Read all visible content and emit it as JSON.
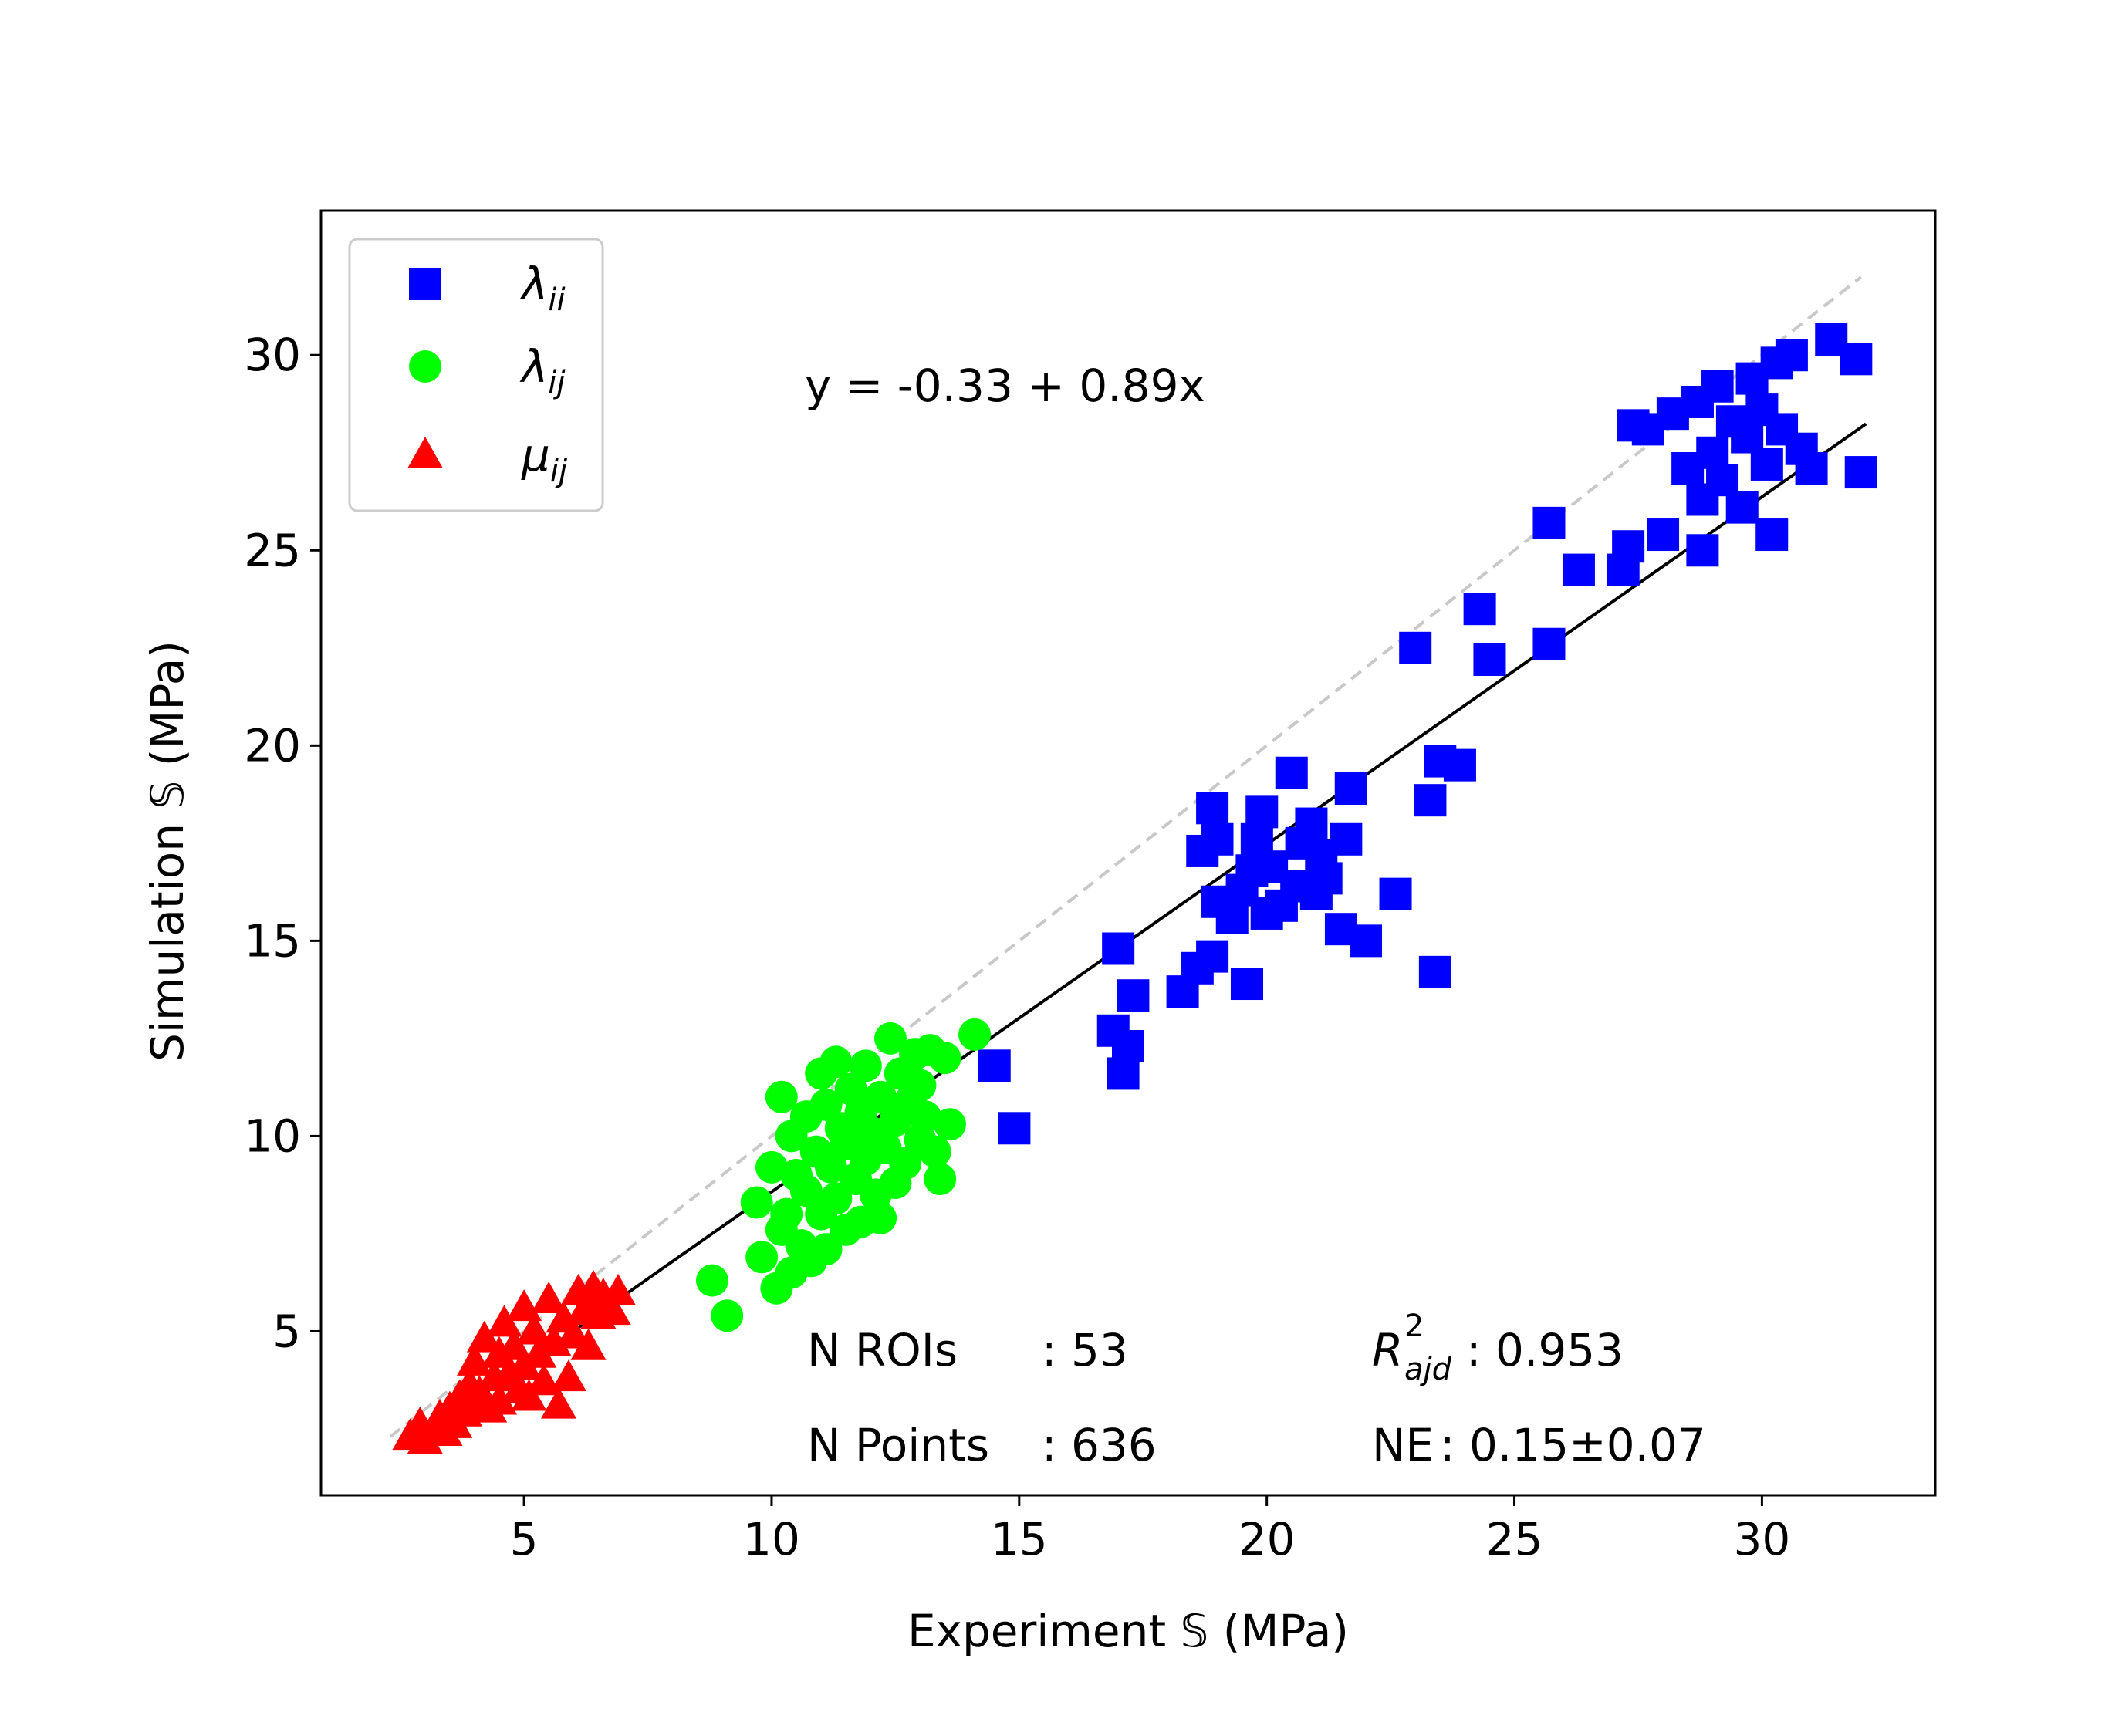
{
  "chart_data": {
    "type": "scatter",
    "xlabel": "Experiment 𝕊 (MPa)",
    "ylabel": "Simulation 𝕊 (MPa)",
    "xlim": [
      0.9,
      33.5
    ],
    "ylim": [
      0.8,
      33.7
    ],
    "xticks": [
      5,
      10,
      15,
      20,
      25,
      30
    ],
    "yticks": [
      5,
      10,
      15,
      20,
      25,
      30
    ],
    "tick_labels": {
      "x": [
        "5",
        "10",
        "15",
        "20",
        "25",
        "30"
      ],
      "y": [
        "5",
        "10",
        "15",
        "20",
        "25",
        "30"
      ]
    },
    "grid": false,
    "legend_placement": "top-left",
    "legend": [
      {
        "series": "lambda_ii",
        "sym": "λ",
        "sub": "ii"
      },
      {
        "series": "lambda_ij",
        "sym": "λ",
        "sub": "ij"
      },
      {
        "series": "mu_ij",
        "sym": "μ",
        "sub": "ij"
      }
    ],
    "equation": "y = -0.33 + 0.89x",
    "fit_line": {
      "intercept": -0.33,
      "slope": 0.89,
      "x_range": [
        2.8,
        32.1
      ],
      "color": "#000000"
    },
    "identity_line": {
      "x_range": [
        2.3,
        32.0
      ],
      "color": "#c8c8c8",
      "style": "dashed"
    },
    "annotations": {
      "n_rois_label": "N ROIs",
      "n_rois_value": ": 53",
      "n_points_label": "N Points",
      "n_points_value": ": 636",
      "r2_symbol": "R",
      "r2_sub": "ajd",
      "r2_sup": "2",
      "r2_value": ": 0.953",
      "ne_label": "NE",
      "ne_value": ": 0.15±0.07"
    },
    "series": [
      {
        "key": "lambda_ii",
        "marker": "square",
        "color": "#0000ff",
        "points": [
          [
            14.5,
            11.8
          ],
          [
            14.9,
            10.2
          ],
          [
            16.9,
            12.7
          ],
          [
            17.0,
            14.8
          ],
          [
            17.1,
            11.6
          ],
          [
            17.2,
            12.3
          ],
          [
            17.3,
            13.6
          ],
          [
            18.3,
            13.7
          ],
          [
            18.6,
            14.3
          ],
          [
            18.7,
            17.3
          ],
          [
            18.9,
            14.6
          ],
          [
            18.9,
            18.4
          ],
          [
            19.0,
            17.6
          ],
          [
            19.0,
            16.0
          ],
          [
            19.3,
            15.6
          ],
          [
            19.5,
            16.3
          ],
          [
            19.6,
            13.9
          ],
          [
            19.7,
            16.8
          ],
          [
            19.8,
            17.6
          ],
          [
            19.9,
            18.3
          ],
          [
            20.0,
            15.7
          ],
          [
            20.1,
            16.9
          ],
          [
            20.3,
            15.9
          ],
          [
            20.5,
            19.3
          ],
          [
            20.6,
            16.4
          ],
          [
            20.7,
            17.5
          ],
          [
            20.9,
            18.0
          ],
          [
            21.0,
            16.2
          ],
          [
            21.1,
            17.2
          ],
          [
            21.2,
            16.6
          ],
          [
            21.5,
            15.3
          ],
          [
            21.6,
            17.6
          ],
          [
            21.7,
            18.9
          ],
          [
            22.0,
            15.0
          ],
          [
            22.6,
            16.2
          ],
          [
            23.0,
            22.5
          ],
          [
            23.3,
            18.6
          ],
          [
            23.4,
            14.2
          ],
          [
            23.5,
            19.6
          ],
          [
            23.9,
            19.5
          ],
          [
            24.3,
            23.5
          ],
          [
            24.5,
            22.2
          ],
          [
            25.7,
            25.7
          ],
          [
            25.7,
            22.6
          ],
          [
            26.3,
            24.5
          ],
          [
            27.2,
            24.5
          ],
          [
            27.3,
            25.1
          ],
          [
            27.4,
            28.2
          ],
          [
            27.7,
            28.1
          ],
          [
            28.0,
            25.4
          ],
          [
            28.2,
            28.5
          ],
          [
            28.5,
            27.1
          ],
          [
            28.7,
            28.8
          ],
          [
            28.8,
            26.3
          ],
          [
            28.8,
            25.0
          ],
          [
            29.0,
            27.5
          ],
          [
            29.1,
            29.2
          ],
          [
            29.2,
            26.8
          ],
          [
            29.4,
            28.3
          ],
          [
            29.6,
            26.1
          ],
          [
            29.7,
            27.9
          ],
          [
            29.8,
            29.4
          ],
          [
            30.0,
            28.6
          ],
          [
            30.1,
            27.2
          ],
          [
            30.2,
            25.4
          ],
          [
            30.3,
            29.8
          ],
          [
            30.4,
            28.1
          ],
          [
            30.6,
            30.0
          ],
          [
            30.8,
            27.6
          ],
          [
            31.0,
            27.1
          ],
          [
            31.4,
            30.4
          ],
          [
            31.9,
            29.9
          ],
          [
            32.0,
            27.0
          ]
        ]
      },
      {
        "key": "lambda_ij",
        "marker": "circle",
        "color": "#00ff00",
        "points": [
          [
            8.8,
            6.3
          ],
          [
            9.1,
            5.4
          ],
          [
            9.7,
            8.3
          ],
          [
            9.8,
            6.9
          ],
          [
            10.0,
            9.2
          ],
          [
            10.1,
            6.1
          ],
          [
            10.2,
            7.6
          ],
          [
            10.2,
            11.0
          ],
          [
            10.3,
            8.0
          ],
          [
            10.4,
            6.5
          ],
          [
            10.4,
            10.0
          ],
          [
            10.5,
            9.0
          ],
          [
            10.6,
            7.2
          ],
          [
            10.7,
            8.6
          ],
          [
            10.7,
            10.5
          ],
          [
            10.8,
            6.8
          ],
          [
            10.9,
            9.6
          ],
          [
            11.0,
            11.6
          ],
          [
            11.0,
            8.0
          ],
          [
            11.1,
            10.8
          ],
          [
            11.1,
            7.1
          ],
          [
            11.2,
            9.2
          ],
          [
            11.3,
            11.9
          ],
          [
            11.3,
            8.4
          ],
          [
            11.4,
            10.2
          ],
          [
            11.5,
            7.6
          ],
          [
            11.5,
            9.8
          ],
          [
            11.6,
            11.2
          ],
          [
            11.7,
            8.9
          ],
          [
            11.8,
            10.6
          ],
          [
            11.8,
            7.8
          ],
          [
            11.9,
            11.8
          ],
          [
            11.9,
            9.4
          ],
          [
            12.0,
            10.1
          ],
          [
            12.1,
            8.5
          ],
          [
            12.2,
            11.0
          ],
          [
            12.2,
            7.9
          ],
          [
            12.3,
            9.7
          ],
          [
            12.4,
            12.5
          ],
          [
            12.5,
            10.4
          ],
          [
            12.5,
            8.8
          ],
          [
            12.6,
            11.6
          ],
          [
            12.7,
            9.3
          ],
          [
            12.8,
            10.9
          ],
          [
            12.9,
            12.1
          ],
          [
            13.0,
            9.9
          ],
          [
            13.0,
            11.3
          ],
          [
            13.1,
            10.5
          ],
          [
            13.2,
            12.2
          ],
          [
            13.3,
            9.6
          ],
          [
            13.4,
            8.9
          ],
          [
            13.5,
            12.0
          ],
          [
            13.6,
            10.3
          ],
          [
            14.1,
            12.6
          ]
        ]
      },
      {
        "key": "mu_ij",
        "marker": "triangle",
        "color": "#ff0000",
        "points": [
          [
            2.7,
            2.3
          ],
          [
            2.9,
            2.6
          ],
          [
            3.0,
            2.2
          ],
          [
            3.2,
            2.5
          ],
          [
            3.3,
            2.8
          ],
          [
            3.4,
            2.4
          ],
          [
            3.5,
            3.0
          ],
          [
            3.6,
            2.6
          ],
          [
            3.7,
            3.3
          ],
          [
            3.8,
            2.9
          ],
          [
            3.9,
            3.6
          ],
          [
            4.0,
            3.1
          ],
          [
            4.0,
            4.2
          ],
          [
            4.1,
            3.4
          ],
          [
            4.2,
            4.8
          ],
          [
            4.3,
            3.0
          ],
          [
            4.4,
            3.8
          ],
          [
            4.5,
            4.4
          ],
          [
            4.5,
            3.2
          ],
          [
            4.6,
            5.2
          ],
          [
            4.7,
            3.9
          ],
          [
            4.8,
            4.6
          ],
          [
            4.9,
            3.5
          ],
          [
            5.0,
            5.6
          ],
          [
            5.0,
            4.1
          ],
          [
            5.1,
            3.3
          ],
          [
            5.2,
            5.0
          ],
          [
            5.3,
            4.4
          ],
          [
            5.4,
            3.7
          ],
          [
            5.5,
            5.8
          ],
          [
            5.6,
            4.7
          ],
          [
            5.7,
            3.1
          ],
          [
            5.8,
            5.3
          ],
          [
            5.9,
            3.8
          ],
          [
            6.0,
            4.9
          ],
          [
            6.1,
            6.0
          ],
          [
            6.2,
            5.5
          ],
          [
            6.3,
            4.6
          ],
          [
            6.4,
            6.1
          ],
          [
            6.5,
            5.4
          ],
          [
            6.6,
            5.9
          ],
          [
            6.8,
            5.5
          ],
          [
            6.9,
            6.0
          ]
        ]
      }
    ]
  }
}
